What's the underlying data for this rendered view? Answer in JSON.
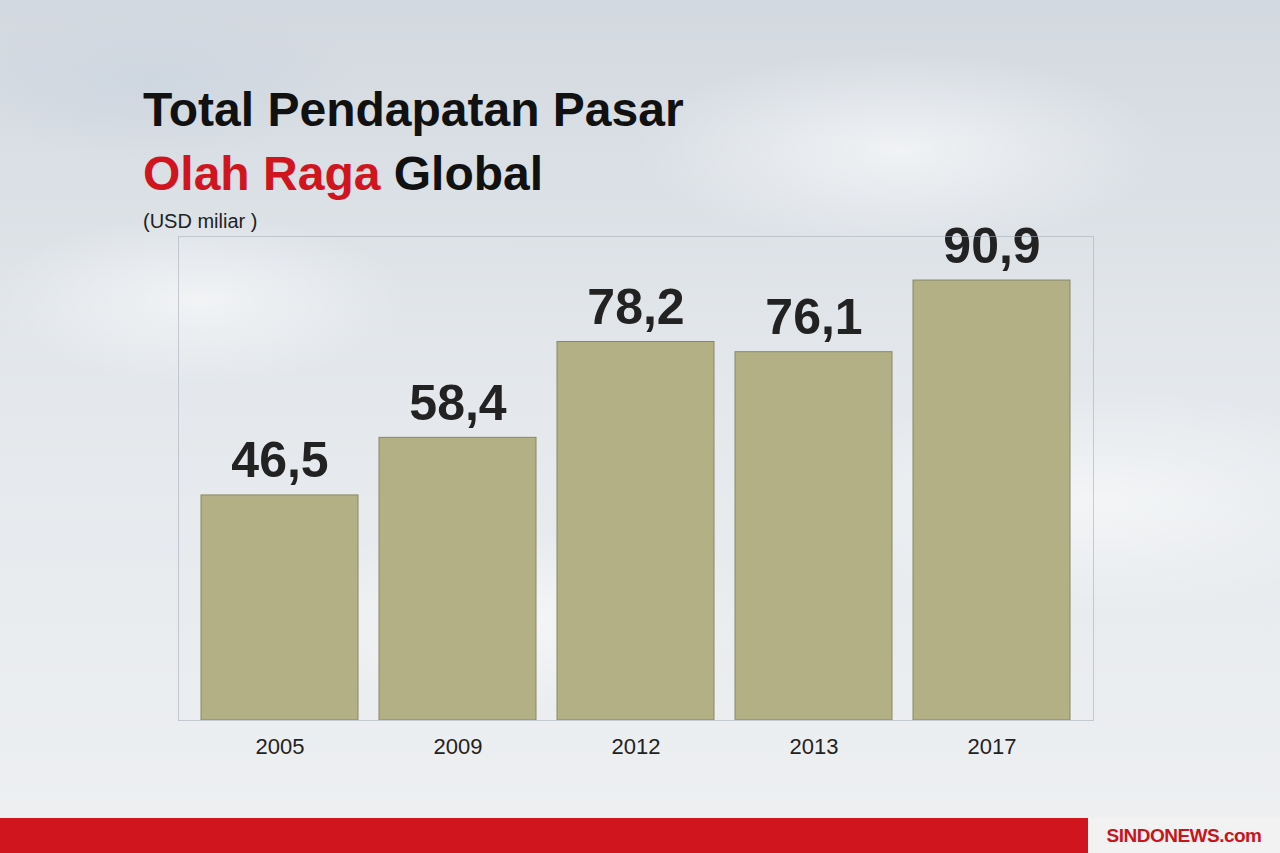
{
  "chart_data": {
    "type": "bar",
    "title": "Total Pendapatan Pasar Olah Raga Global",
    "subtitle": "(USD miliar )",
    "source": "SINDONEWS.com",
    "categories": [
      "2005",
      "2009",
      "2012",
      "2013",
      "2017"
    ],
    "values": [
      46.5,
      58.4,
      78.2,
      76.1,
      90.9
    ],
    "value_labels": [
      "46,5",
      "58,4",
      "78,2",
      "76,1",
      "90,9"
    ],
    "color": "#b3b085",
    "ylim": [
      0,
      100
    ],
    "yticks": [],
    "data_labels": true,
    "tick_labels": "x",
    "grid": false
  }
}
